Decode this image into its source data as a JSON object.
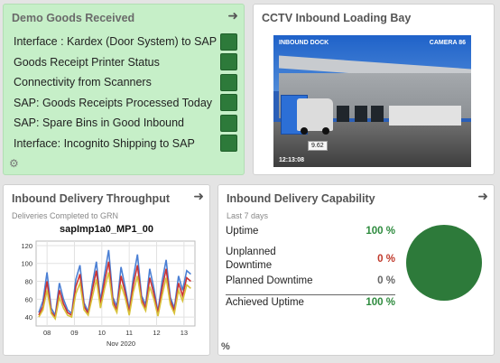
{
  "goods": {
    "title": "Demo Goods Received",
    "status_color": "#2d7a3a",
    "tile_color": "#c6efc8",
    "items": [
      {
        "label": "Interface : Kardex (Door System) to SAP"
      },
      {
        "label": "Goods Receipt Printer Status"
      },
      {
        "label": "Connectivity from Scanners"
      },
      {
        "label": "SAP: Goods Receipts Processed Today"
      },
      {
        "label": "SAP: Spare Bins in Good Inbound"
      },
      {
        "label": "Interface: Incognito Shipping to SAP"
      }
    ]
  },
  "cctv": {
    "title": "CCTV Inbound Loading Bay",
    "overlay_left": "INBOUND DOCK",
    "overlay_right": "CAMERA 86",
    "timestamp": "12:13:08",
    "tooltip": "9.62"
  },
  "throughput": {
    "title": "Inbound Delivery Throughput",
    "subtitle": "Deliveries Completed to GRN"
  },
  "capability": {
    "title": "Inbound Delivery Capability",
    "subtitle": "Last 7 days",
    "rows": [
      {
        "label": "Uptime",
        "value": "100 %",
        "color": "#2e8b3e"
      },
      {
        "label": "Unplanned Downtime",
        "value": "0 %",
        "color": "#c0392b"
      },
      {
        "label": "Planned Downtime",
        "value": "0 %",
        "color": "#666666"
      },
      {
        "label": "Achieved Uptime",
        "value": "100 %",
        "color": "#2e8b3e"
      }
    ],
    "pie_color": "#2d7a3a",
    "pie_value": 100,
    "footer_symbol": "%"
  },
  "chart_data": {
    "type": "line",
    "title": "sapImp1a0_MP1_00",
    "xlabel": "Nov 2020",
    "x_ticks": [
      "08",
      "09",
      "10",
      "11",
      "12",
      "13"
    ],
    "y_ticks": [
      40,
      60,
      80,
      100,
      120
    ],
    "ylim": [
      30,
      125
    ],
    "x_range": [
      7.6,
      13.4
    ],
    "grid": true,
    "series": [
      {
        "color": "#4a7fd4",
        "x": [
          7.7,
          7.85,
          8.0,
          8.15,
          8.3,
          8.45,
          8.6,
          8.75,
          8.9,
          9.05,
          9.2,
          9.35,
          9.5,
          9.65,
          9.8,
          9.95,
          10.1,
          10.25,
          10.4,
          10.55,
          10.7,
          10.85,
          11.0,
          11.15,
          11.3,
          11.45,
          11.6,
          11.75,
          11.9,
          12.05,
          12.2,
          12.35,
          12.5,
          12.65,
          12.8,
          12.95,
          13.1,
          13.25
        ],
        "values": [
          45,
          58,
          90,
          50,
          42,
          78,
          60,
          48,
          44,
          82,
          98,
          56,
          46,
          76,
          102,
          58,
          88,
          115,
          62,
          52,
          96,
          74,
          48,
          84,
          110,
          64,
          54,
          94,
          72,
          46,
          80,
          104,
          62,
          50,
          86,
          70,
          92,
          88
        ]
      },
      {
        "color": "#cc3333",
        "x": [
          7.7,
          7.85,
          8.0,
          8.15,
          8.3,
          8.45,
          8.6,
          8.75,
          8.9,
          9.05,
          9.2,
          9.35,
          9.5,
          9.65,
          9.8,
          9.95,
          10.1,
          10.25,
          10.4,
          10.55,
          10.7,
          10.85,
          11.0,
          11.15,
          11.3,
          11.45,
          11.6,
          11.75,
          11.9,
          12.05,
          12.2,
          12.35,
          12.5,
          12.65,
          12.8,
          12.95,
          13.1,
          13.25
        ],
        "values": [
          42,
          52,
          80,
          46,
          40,
          70,
          55,
          45,
          42,
          74,
          88,
          52,
          44,
          70,
          92,
          54,
          80,
          102,
          58,
          48,
          86,
          68,
          45,
          76,
          98,
          60,
          50,
          84,
          66,
          44,
          72,
          94,
          58,
          47,
          78,
          64,
          84,
          80
        ]
      },
      {
        "color": "#d8c23a",
        "x": [
          7.7,
          7.85,
          8.0,
          8.15,
          8.3,
          8.45,
          8.6,
          8.75,
          8.9,
          9.05,
          9.2,
          9.35,
          9.5,
          9.65,
          9.8,
          9.95,
          10.1,
          10.25,
          10.4,
          10.55,
          10.7,
          10.85,
          11.0,
          11.15,
          11.3,
          11.45,
          11.6,
          11.75,
          11.9,
          12.05,
          12.2,
          12.35,
          12.5,
          12.65,
          12.8,
          12.95,
          13.1,
          13.25
        ],
        "values": [
          40,
          48,
          70,
          44,
          38,
          62,
          50,
          42,
          40,
          66,
          78,
          48,
          42,
          62,
          82,
          50,
          72,
          90,
          54,
          45,
          76,
          62,
          42,
          68,
          86,
          56,
          47,
          74,
          60,
          41,
          64,
          84,
          54,
          44,
          70,
          58,
          76,
          72
        ]
      }
    ]
  }
}
